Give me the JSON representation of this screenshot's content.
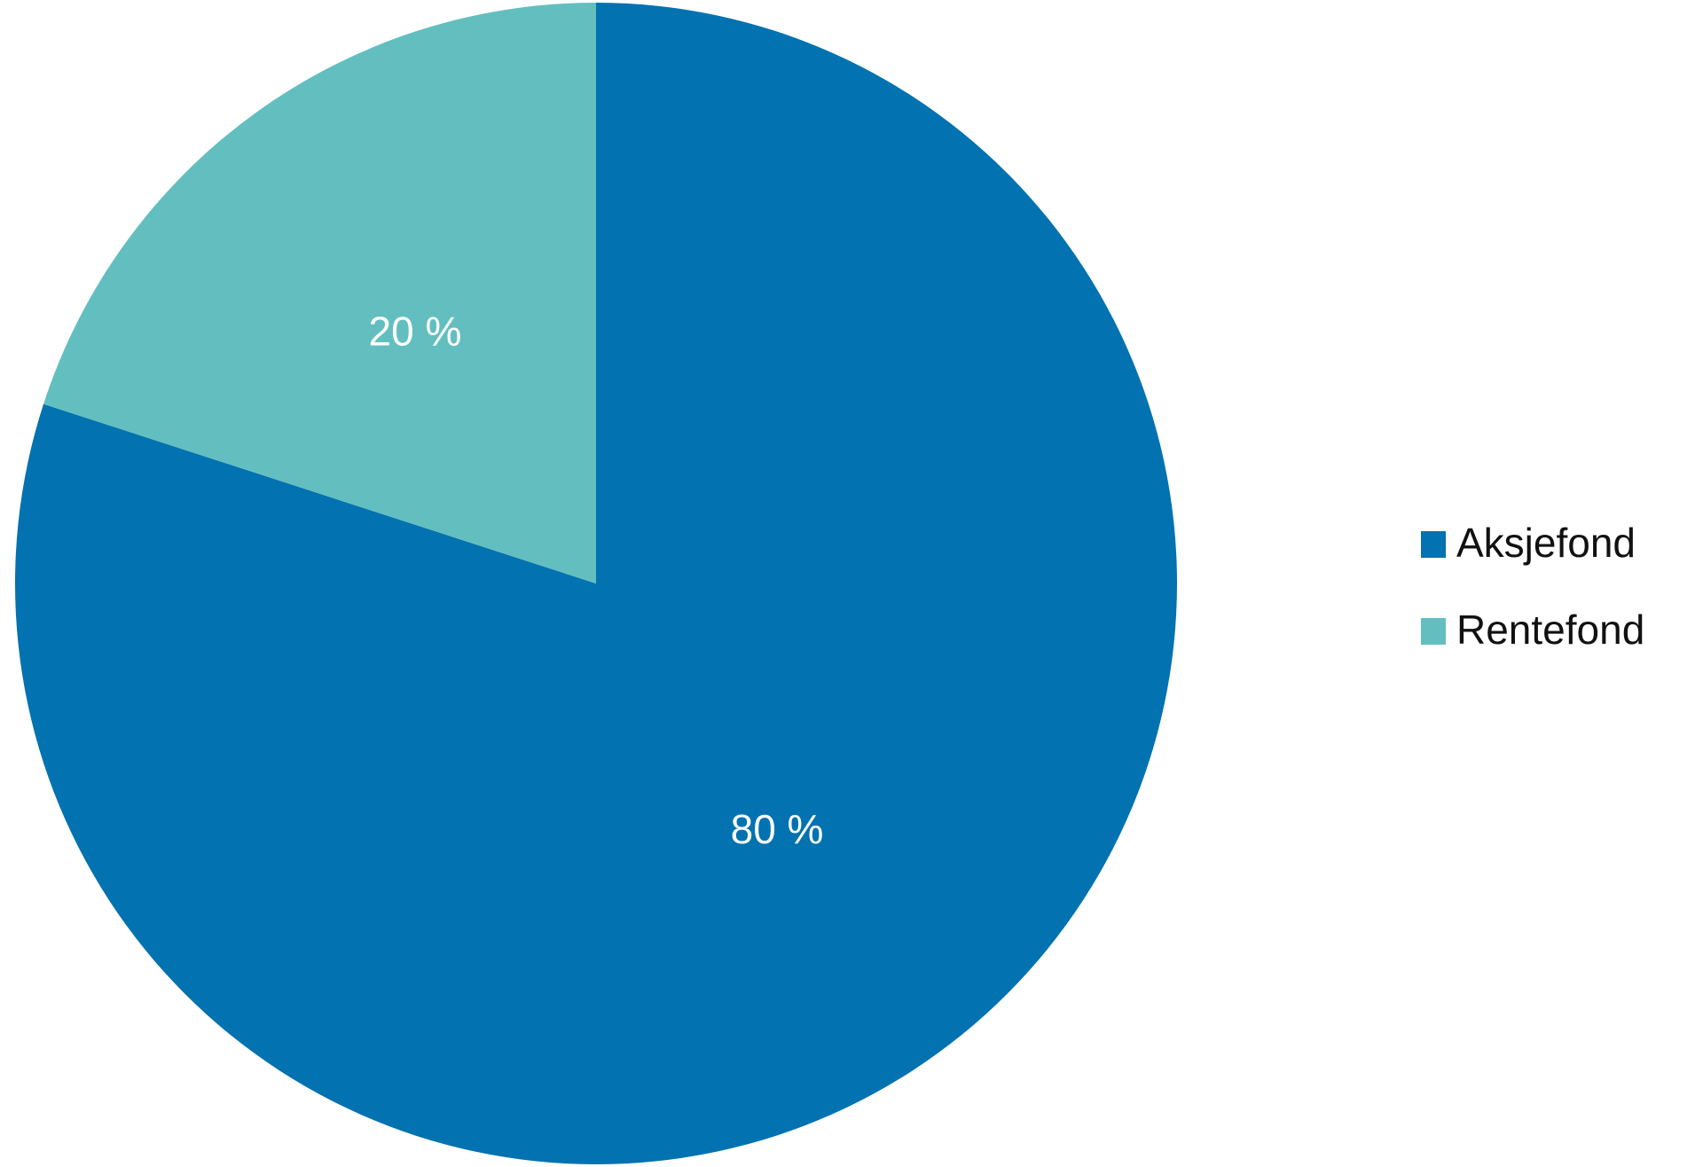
{
  "chart_data": {
    "type": "pie",
    "categories": [
      "Aksjefond",
      "Rentefond"
    ],
    "values": [
      80,
      20
    ],
    "value_labels": [
      "80 %",
      "20 %"
    ],
    "colors": [
      "#0272b0",
      "#63bfbf"
    ]
  }
}
